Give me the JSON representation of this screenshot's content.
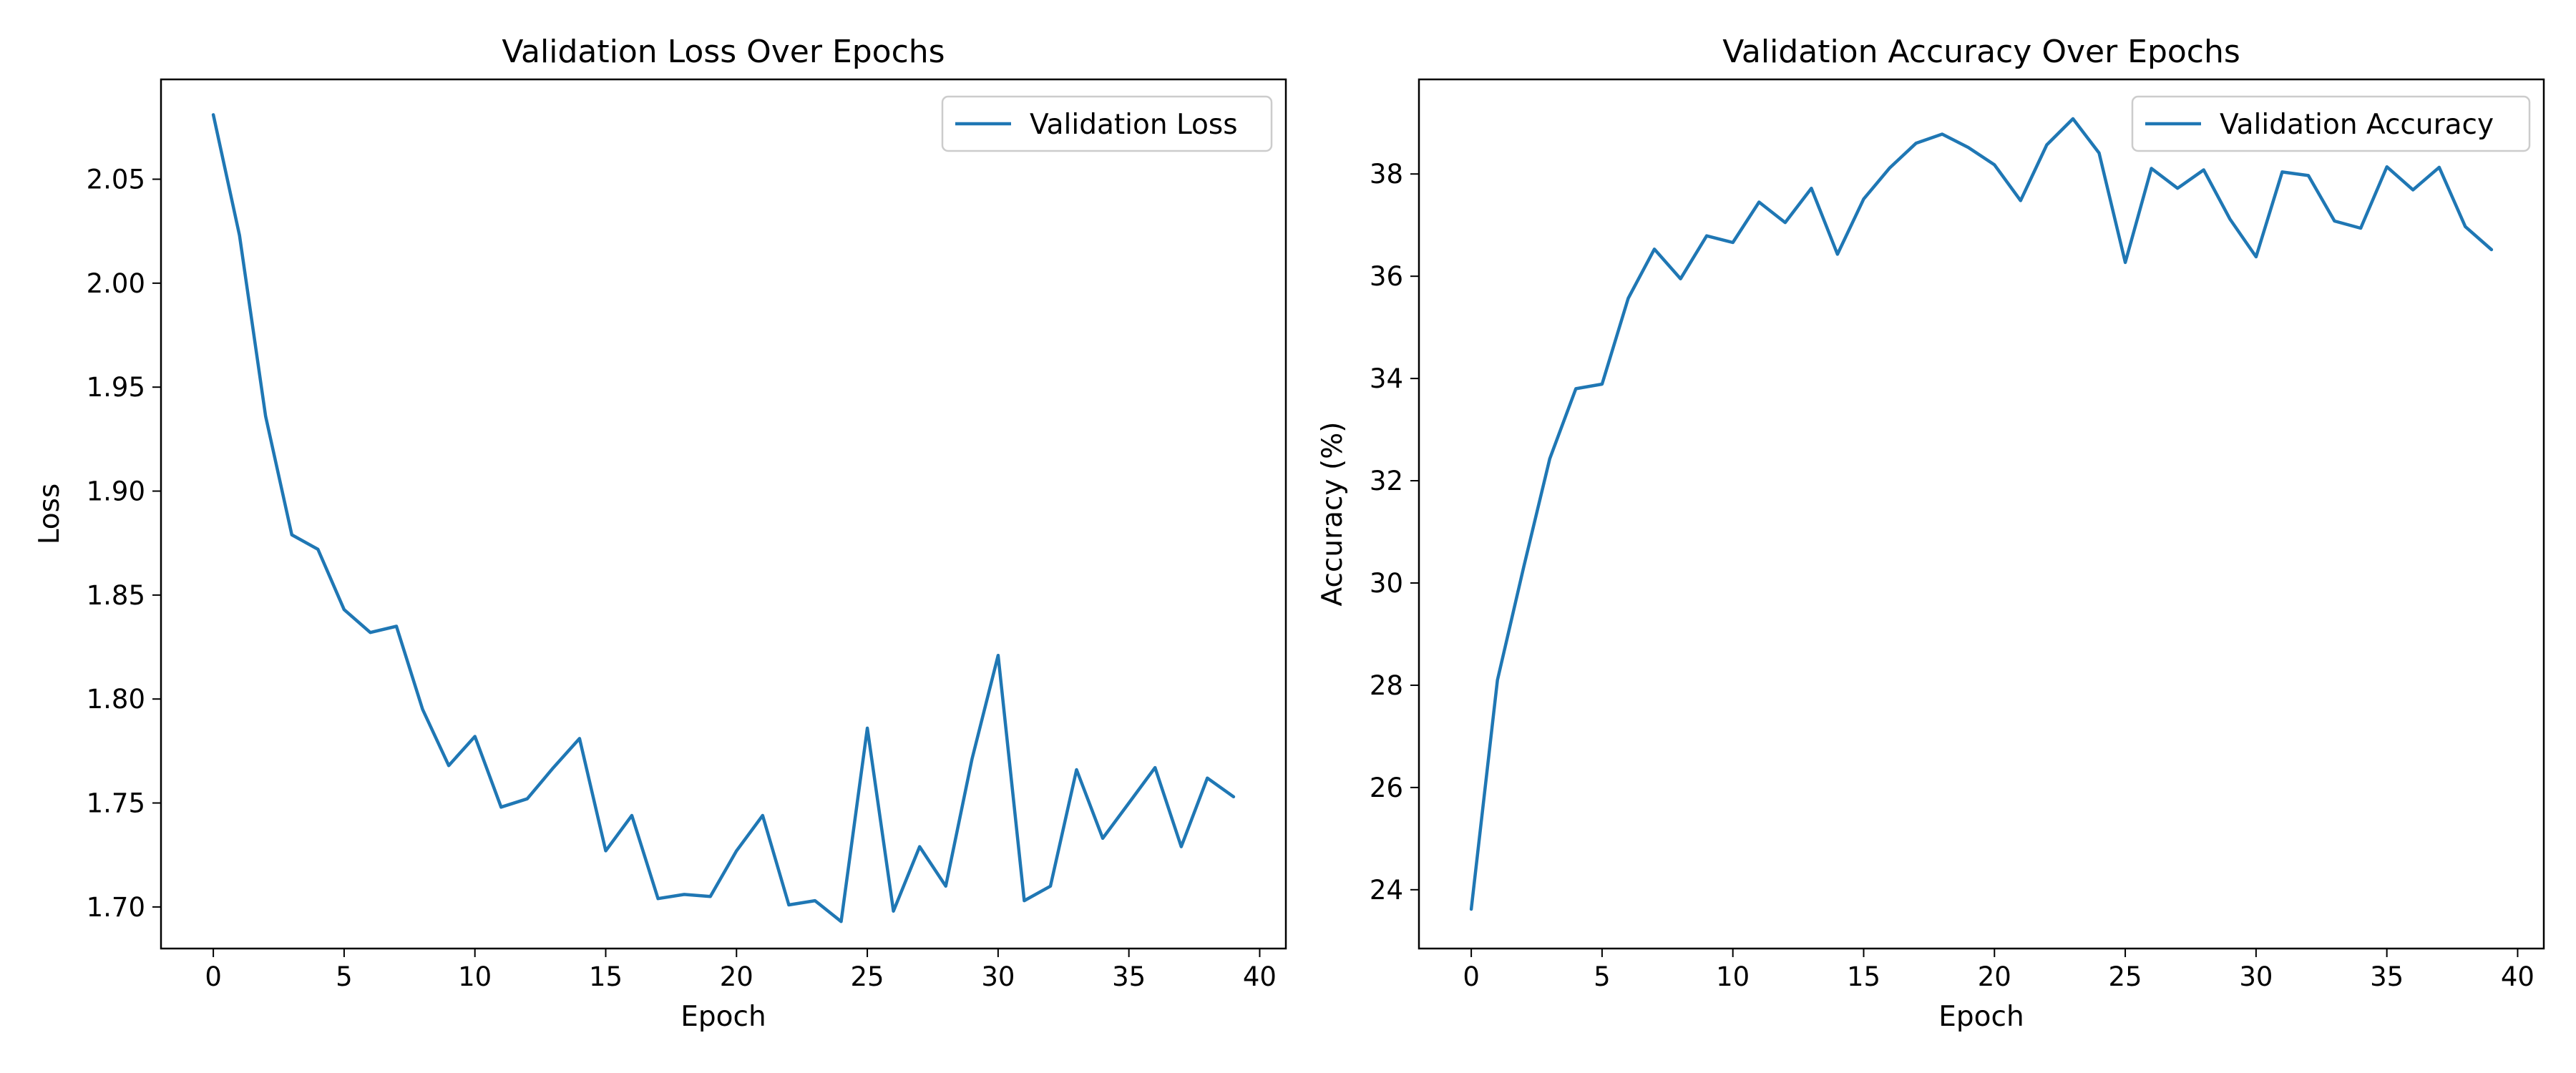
{
  "figure": {
    "background": "#ffffff",
    "line_color": "#1f77b4"
  },
  "chart_data": [
    {
      "type": "line",
      "title": "Validation Loss Over Epochs",
      "xlabel": "Epoch",
      "ylabel": "Loss",
      "xlim": [
        -2,
        41
      ],
      "ylim": [
        1.68,
        2.098
      ],
      "xticks": [
        0,
        5,
        10,
        15,
        20,
        25,
        30,
        35,
        40
      ],
      "xtick_labels": [
        "0",
        "5",
        "10",
        "15",
        "20",
        "25",
        "30",
        "35",
        "40"
      ],
      "yticks": [
        1.7,
        1.75,
        1.8,
        1.85,
        1.9,
        1.95,
        2.0,
        2.05
      ],
      "ytick_labels": [
        "1.70",
        "1.75",
        "1.80",
        "1.85",
        "1.90",
        "1.95",
        "2.00",
        "2.05"
      ],
      "grid": false,
      "legend_position": "top-right",
      "series": [
        {
          "name": "Validation Loss",
          "color": "#1f77b4",
          "x": [
            0,
            1,
            2,
            3,
            4,
            5,
            6,
            7,
            8,
            9,
            10,
            11,
            12,
            13,
            14,
            15,
            16,
            17,
            18,
            19,
            20,
            21,
            22,
            23,
            24,
            25,
            26,
            27,
            28,
            29,
            30,
            31,
            32,
            33,
            34,
            35,
            36,
            37,
            38,
            39
          ],
          "y": [
            2.081,
            2.023,
            1.936,
            1.879,
            1.872,
            1.843,
            1.832,
            1.835,
            1.795,
            1.768,
            1.782,
            1.748,
            1.752,
            1.767,
            1.781,
            1.727,
            1.744,
            1.704,
            1.706,
            1.705,
            1.727,
            1.744,
            1.701,
            1.703,
            1.693,
            1.786,
            1.698,
            1.729,
            1.71,
            1.771,
            1.821,
            1.703,
            1.71,
            1.766,
            1.733,
            1.75,
            1.767,
            1.729,
            1.762,
            1.753
          ]
        }
      ]
    },
    {
      "type": "line",
      "title": "Validation Accuracy Over Epochs",
      "xlabel": "Epoch",
      "ylabel": "Accuracy (%)",
      "xlim": [
        -2,
        41
      ],
      "ylim": [
        22.85,
        39.85
      ],
      "xticks": [
        0,
        5,
        10,
        15,
        20,
        25,
        30,
        35,
        40
      ],
      "xtick_labels": [
        "0",
        "5",
        "10",
        "15",
        "20",
        "25",
        "30",
        "35",
        "40"
      ],
      "yticks": [
        24,
        26,
        28,
        30,
        32,
        34,
        36,
        38
      ],
      "ytick_labels": [
        "24",
        "26",
        "28",
        "30",
        "32",
        "34",
        "36",
        "38"
      ],
      "grid": false,
      "legend_position": "top-right",
      "series": [
        {
          "name": "Validation Accuracy",
          "color": "#1f77b4",
          "x": [
            0,
            1,
            2,
            3,
            4,
            5,
            6,
            7,
            8,
            9,
            10,
            11,
            12,
            13,
            14,
            15,
            16,
            17,
            18,
            19,
            20,
            21,
            22,
            23,
            24,
            25,
            26,
            27,
            28,
            29,
            30,
            31,
            32,
            33,
            34,
            35,
            36,
            37,
            38,
            39
          ],
          "y": [
            23.62,
            28.1,
            30.3,
            32.43,
            33.8,
            33.89,
            35.57,
            36.53,
            35.95,
            36.79,
            36.66,
            37.45,
            37.05,
            37.72,
            36.43,
            37.51,
            38.12,
            38.6,
            38.78,
            38.52,
            38.18,
            37.48,
            38.57,
            39.08,
            38.41,
            36.27,
            38.11,
            37.72,
            38.08,
            37.12,
            36.38,
            38.04,
            37.97,
            37.08,
            36.94,
            38.14,
            37.69,
            38.13,
            36.97,
            36.52
          ]
        }
      ]
    }
  ]
}
